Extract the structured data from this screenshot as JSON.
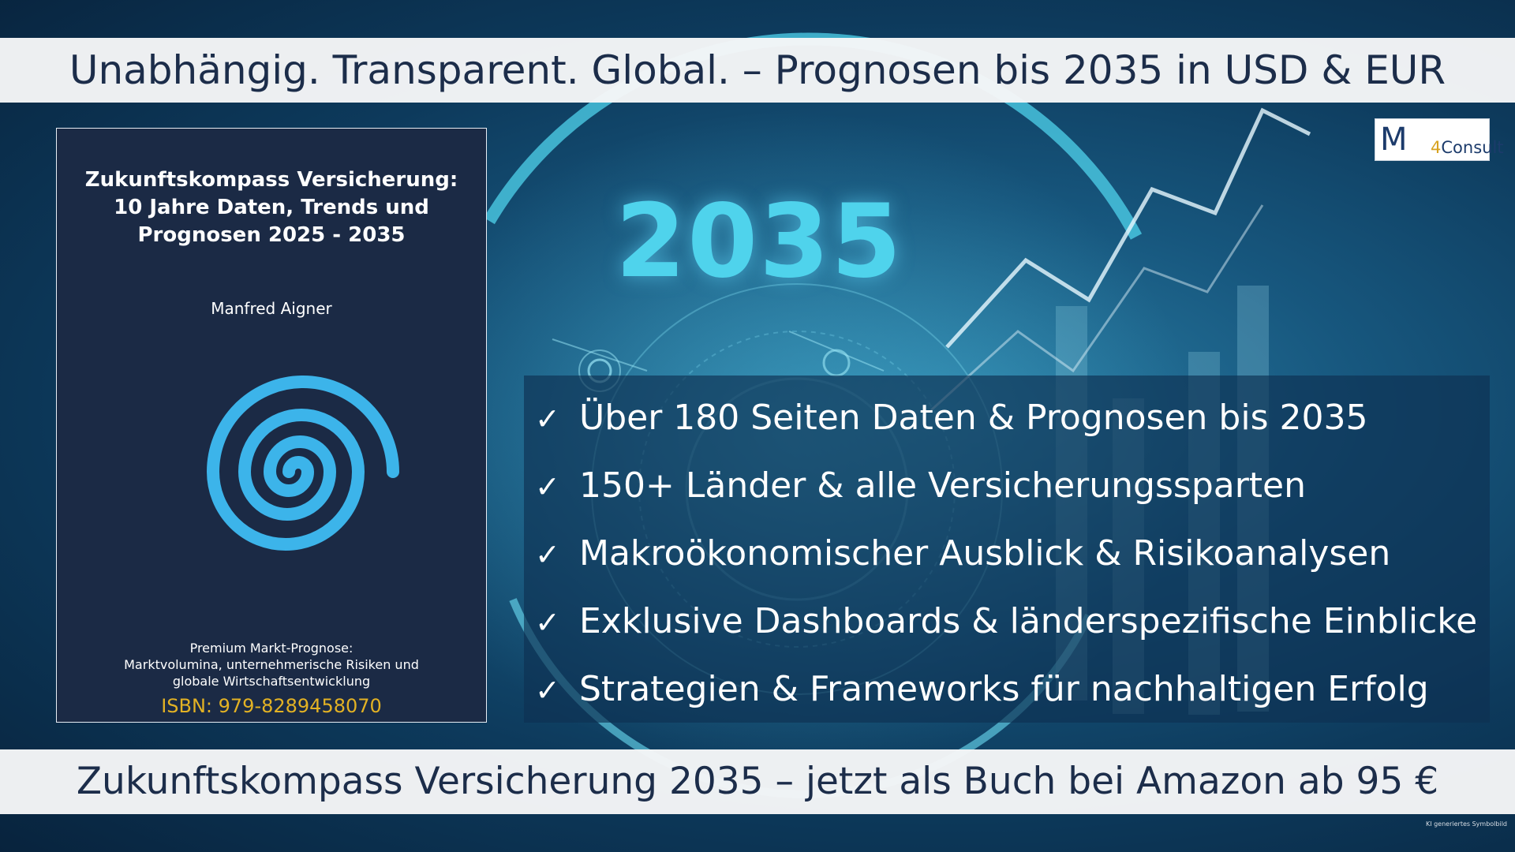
{
  "header": {
    "headline": "Unabhängig. Transparent. Global. – Prognosen bis 2035 in USD & EUR"
  },
  "hero": {
    "year": "2035"
  },
  "logo": {
    "mark": "M",
    "number": "4",
    "text": "Consult"
  },
  "book": {
    "title_lines": [
      "Zukunftskompass Versicherung:",
      "10 Jahre Daten, Trends und",
      "Prognosen 2025 - 2035"
    ],
    "author": "Manfred Aigner",
    "subtitle_lines": [
      "Premium Markt-Prognose:",
      "Marktvolumina, unternehmerische Risiken und",
      "globale Wirtschaftsentwicklung"
    ],
    "isbn": "ISBN: 979-8289458070"
  },
  "features": {
    "check_symbol": "✓",
    "items": [
      "Über 180 Seiten Daten & Prognosen bis 2035",
      "150+ Länder & alle Versicherungssparten",
      "Makroökonomischer Ausblick & Risikoanalysen",
      "Exklusive Dashboards & länderspezifische Einblicke",
      "Strategien & Frameworks für nachhaltigen Erfolg"
    ]
  },
  "footer": {
    "headline": "Zukunftskompass Versicherung 2035 – jetzt als Buch bei Amazon ab 95 €",
    "note": "KI generiertes Symbolbild"
  },
  "colors": {
    "banner_text": "#1c2d4a",
    "accent_cyan": "#4fd3ec",
    "book_bg": "#1b2a45",
    "isbn_gold": "#e3b224",
    "spiral_blue": "#3cb4ea"
  }
}
